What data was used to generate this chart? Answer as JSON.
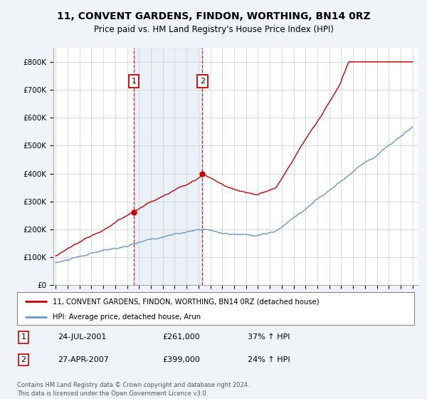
{
  "title": "11, CONVENT GARDENS, FINDON, WORTHING, BN14 0RZ",
  "subtitle": "Price paid vs. HM Land Registry's House Price Index (HPI)",
  "legend_line1": "11, CONVENT GARDENS, FINDON, WORTHING, BN14 0RZ (detached house)",
  "legend_line2": "HPI: Average price, detached house, Arun",
  "footer": "Contains HM Land Registry data © Crown copyright and database right 2024.\nThis data is licensed under the Open Government Licence v3.0.",
  "sale1_date": "24-JUL-2001",
  "sale1_price": 261000,
  "sale1_label": "37% ↑ HPI",
  "sale2_date": "27-APR-2007",
  "sale2_price": 399000,
  "sale2_label": "24% ↑ HPI",
  "sale1_x": 2001.56,
  "sale2_x": 2007.32,
  "red_color": "#cc0000",
  "blue_color": "#6699cc",
  "background_color": "#f0f4f8",
  "plot_bg_color": "#ffffff",
  "grid_color": "#cccccc",
  "ylim_min": 0,
  "ylim_max": 850000,
  "xlim_start": 1994.8,
  "xlim_end": 2025.5
}
